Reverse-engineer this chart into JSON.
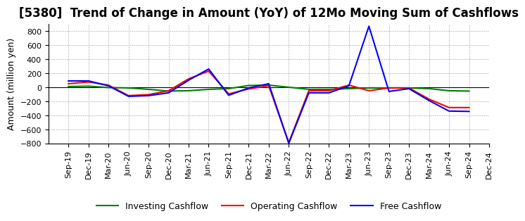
{
  "title": "[5380]  Trend of Change in Amount (YoY) of 12Mo Moving Sum of Cashflows",
  "ylabel": "Amount (million yen)",
  "x_labels": [
    "Sep-19",
    "Dec-19",
    "Mar-20",
    "Jun-20",
    "Sep-20",
    "Dec-20",
    "Mar-21",
    "Jun-21",
    "Sep-21",
    "Dec-21",
    "Mar-22",
    "Jun-22",
    "Sep-22",
    "Dec-22",
    "Mar-23",
    "Jun-23",
    "Sep-23",
    "Dec-23",
    "Mar-24",
    "Jun-24",
    "Sep-24",
    "Dec-24"
  ],
  "operating": [
    50,
    75,
    30,
    -120,
    -105,
    -50,
    120,
    230,
    -95,
    -25,
    20,
    -790,
    -50,
    -50,
    30,
    -50,
    -10,
    -10,
    -170,
    -290,
    -290,
    null
  ],
  "investing": [
    10,
    15,
    -5,
    -10,
    -30,
    -55,
    -50,
    -30,
    -20,
    25,
    30,
    0,
    -30,
    -30,
    -20,
    -10,
    -10,
    -10,
    -20,
    -50,
    -55,
    null
  ],
  "free": [
    90,
    90,
    20,
    -130,
    -120,
    -80,
    100,
    260,
    -115,
    -10,
    50,
    -800,
    -80,
    -80,
    20,
    870,
    -60,
    -20,
    -190,
    -340,
    -345,
    null
  ],
  "ylim": [
    -800,
    900
  ],
  "yticks": [
    -800,
    -600,
    -400,
    -200,
    0,
    200,
    400,
    600,
    800
  ],
  "colors": {
    "operating": "#FF0000",
    "investing": "#008000",
    "free": "#0000FF"
  },
  "legend_labels": [
    "Operating Cashflow",
    "Investing Cashflow",
    "Free Cashflow"
  ],
  "background_color": "#FFFFFF",
  "plot_background": "#FFFFFF",
  "grid_color": "#999999",
  "title_fontsize": 12,
  "label_fontsize": 9,
  "tick_fontsize": 8,
  "linewidth": 1.5
}
